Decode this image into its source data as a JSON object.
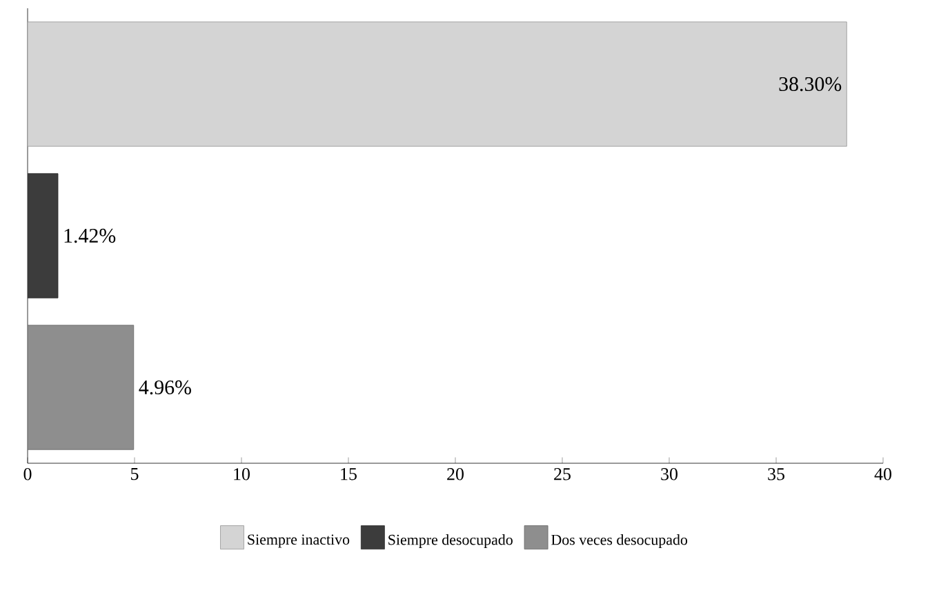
{
  "chart_data": {
    "type": "bar",
    "orientation": "horizontal",
    "categories": [
      null,
      null,
      null
    ],
    "series": [
      {
        "name": "Siempre inactivo",
        "color": "#d4d4d4",
        "values": [
          38.3,
          null,
          null
        ],
        "value_labels": [
          "38.30%",
          null,
          null
        ]
      },
      {
        "name": "Siempre desocupado",
        "color": "#3c3c3c",
        "values": [
          null,
          1.42,
          null
        ],
        "value_labels": [
          null,
          "1.42%",
          null
        ]
      },
      {
        "name": "Dos veces desocupado",
        "color": "#8e8e8e",
        "values": [
          null,
          null,
          4.96
        ],
        "value_labels": [
          null,
          null,
          "4.96%"
        ]
      }
    ],
    "xlim": [
      0,
      40
    ],
    "xticks": [
      0,
      5,
      10,
      15,
      20,
      25,
      30,
      35,
      40
    ],
    "tick_labels": "x",
    "legend": "bottom",
    "grid": false
  }
}
